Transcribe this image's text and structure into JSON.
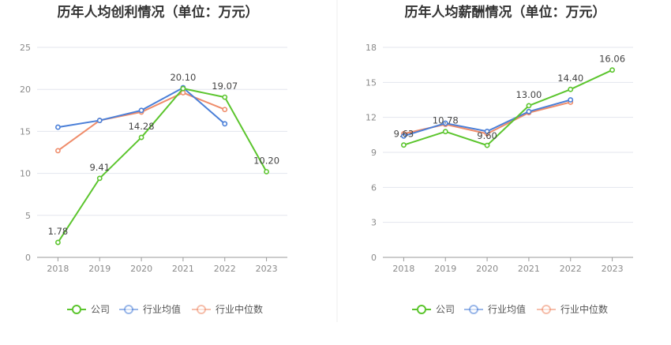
{
  "chart_data": [
    {
      "type": "line",
      "title": "历年人均创利情况（单位：万元）",
      "categories": [
        "2018",
        "2019",
        "2020",
        "2021",
        "2022",
        "2023"
      ],
      "ylim": [
        0,
        25
      ],
      "yticks": [
        0,
        5,
        10,
        15,
        20,
        25
      ],
      "grid": true,
      "legend_position": "bottom",
      "series": [
        {
          "name": "公司",
          "color": "#5cc52e",
          "values": [
            1.78,
            9.41,
            14.28,
            20.1,
            19.07,
            10.2
          ],
          "labels": [
            "1.78",
            "9.41",
            "14.28",
            "20.10",
            "19.07",
            "10.20"
          ]
        },
        {
          "name": "行业均值",
          "color": "#4a7fd8",
          "values": [
            15.5,
            16.3,
            17.5,
            20.2,
            15.9,
            null
          ]
        },
        {
          "name": "行业中位数",
          "color": "#ef8c6a",
          "values": [
            12.7,
            16.3,
            17.3,
            19.6,
            17.6,
            null
          ]
        }
      ]
    },
    {
      "type": "line",
      "title": "历年人均薪酬情况（单位：万元）",
      "categories": [
        "2018",
        "2019",
        "2020",
        "2021",
        "2022",
        "2023"
      ],
      "ylim": [
        0,
        18
      ],
      "yticks": [
        0,
        3,
        6,
        9,
        12,
        15,
        18
      ],
      "grid": true,
      "legend_position": "bottom",
      "series": [
        {
          "name": "公司",
          "color": "#5cc52e",
          "values": [
            9.63,
            10.78,
            9.6,
            13.0,
            14.4,
            16.06
          ],
          "labels": [
            "9.63",
            "10.78",
            "9.60",
            "13.00",
            "14.40",
            "16.06"
          ]
        },
        {
          "name": "行业均值",
          "color": "#4a7fd8",
          "values": [
            10.4,
            11.5,
            10.8,
            12.5,
            13.5,
            null
          ]
        },
        {
          "name": "行业中位数",
          "color": "#ef8c6a",
          "values": [
            10.6,
            11.4,
            10.6,
            12.4,
            13.3,
            null
          ]
        }
      ]
    }
  ]
}
